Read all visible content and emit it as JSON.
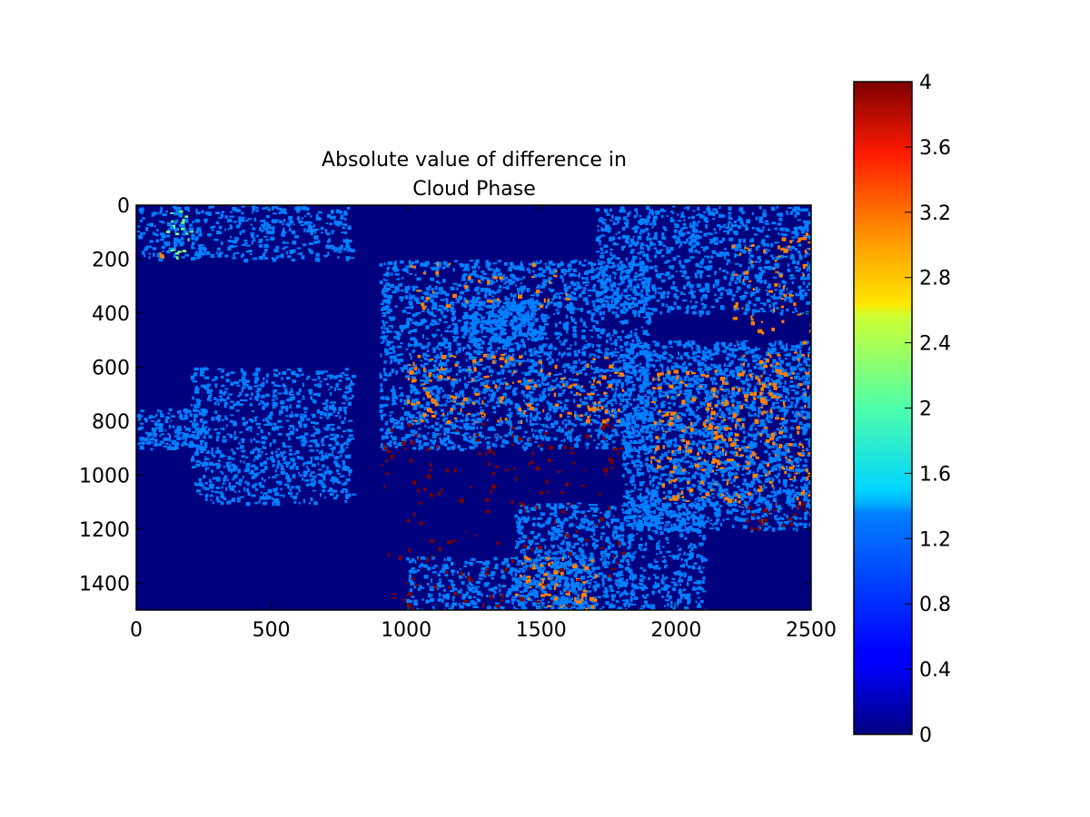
{
  "chart_data": {
    "type": "heatmap",
    "title_lines": [
      "Absolute value of difference in",
      "Cloud Phase"
    ],
    "x": {
      "lim": [
        0,
        2500
      ],
      "ticks": [
        0,
        500,
        1000,
        1500,
        2000,
        2500
      ],
      "tick_labels": [
        "0",
        "500",
        "1000",
        "1500",
        "2000",
        "2500"
      ]
    },
    "y": {
      "lim": [
        0,
        1500
      ],
      "inverted": true,
      "ticks": [
        0,
        200,
        400,
        600,
        800,
        1000,
        1200,
        1400
      ],
      "tick_labels": [
        "0",
        "200",
        "400",
        "600",
        "800",
        "1000",
        "1200",
        "1400"
      ]
    },
    "colorbar": {
      "colormap": "jet",
      "range": [
        0,
        4
      ],
      "ticks": [
        0,
        0.4,
        0.8,
        1.2,
        1.6,
        2,
        2.4,
        2.8,
        3.2,
        3.6,
        4
      ],
      "tick_labels": [
        "0",
        "0.4",
        "0.8",
        "1.2",
        "1.6",
        "2",
        "2.4",
        "2.8",
        "3.2",
        "3.6",
        "4"
      ]
    },
    "description_values": {
      "background_value": 0,
      "common_values": [
        1,
        3,
        4
      ],
      "rare_values": [
        2
      ]
    },
    "regions": [
      {
        "x": [
          100,
          200
        ],
        "y": [
          0,
          200
        ],
        "value": 2,
        "density": 0.12
      },
      {
        "x": [
          80,
          110
        ],
        "y": [
          170,
          190
        ],
        "value": 3,
        "density": 0.5
      },
      {
        "x": [
          0,
          800
        ],
        "y": [
          0,
          200
        ],
        "value": 1,
        "density": 0.28
      },
      {
        "x": [
          200,
          800
        ],
        "y": [
          600,
          1100
        ],
        "value": 1,
        "density": 0.3
      },
      {
        "x": [
          900,
          1900
        ],
        "y": [
          200,
          900
        ],
        "value": 1,
        "density": 0.35
      },
      {
        "x": [
          1200,
          1500
        ],
        "y": [
          350,
          500
        ],
        "value": 1,
        "density": 0.55
      },
      {
        "x": [
          1700,
          2500
        ],
        "y": [
          0,
          400
        ],
        "value": 1,
        "density": 0.3
      },
      {
        "x": [
          1800,
          2500
        ],
        "y": [
          500,
          1200
        ],
        "value": 1,
        "density": 0.45
      },
      {
        "x": [
          1400,
          2100
        ],
        "y": [
          1100,
          1500
        ],
        "value": 1,
        "density": 0.35
      },
      {
        "x": [
          0,
          250
        ],
        "y": [
          750,
          900
        ],
        "value": 1,
        "density": 0.45
      },
      {
        "x": [
          1000,
          1700
        ],
        "y": [
          1300,
          1500
        ],
        "value": 1,
        "density": 0.3
      },
      {
        "x": [
          1000,
          1800
        ],
        "y": [
          550,
          800
        ],
        "value": 3,
        "density": 0.08
      },
      {
        "x": [
          1900,
          2500
        ],
        "y": [
          600,
          1100
        ],
        "value": 3,
        "density": 0.1
      },
      {
        "x": [
          1400,
          1700
        ],
        "y": [
          1300,
          1500
        ],
        "value": 3,
        "density": 0.1
      },
      {
        "x": [
          2200,
          2500
        ],
        "y": [
          100,
          600
        ],
        "value": 3,
        "density": 0.05
      },
      {
        "x": [
          900,
          1800
        ],
        "y": [
          800,
          1500
        ],
        "value": 4,
        "density": 0.03
      },
      {
        "x": [
          2200,
          2500
        ],
        "y": [
          1100,
          1200
        ],
        "value": 4,
        "density": 0.08
      },
      {
        "x": [
          1000,
          1600
        ],
        "y": [
          200,
          400
        ],
        "value": 3,
        "density": 0.03
      }
    ]
  }
}
